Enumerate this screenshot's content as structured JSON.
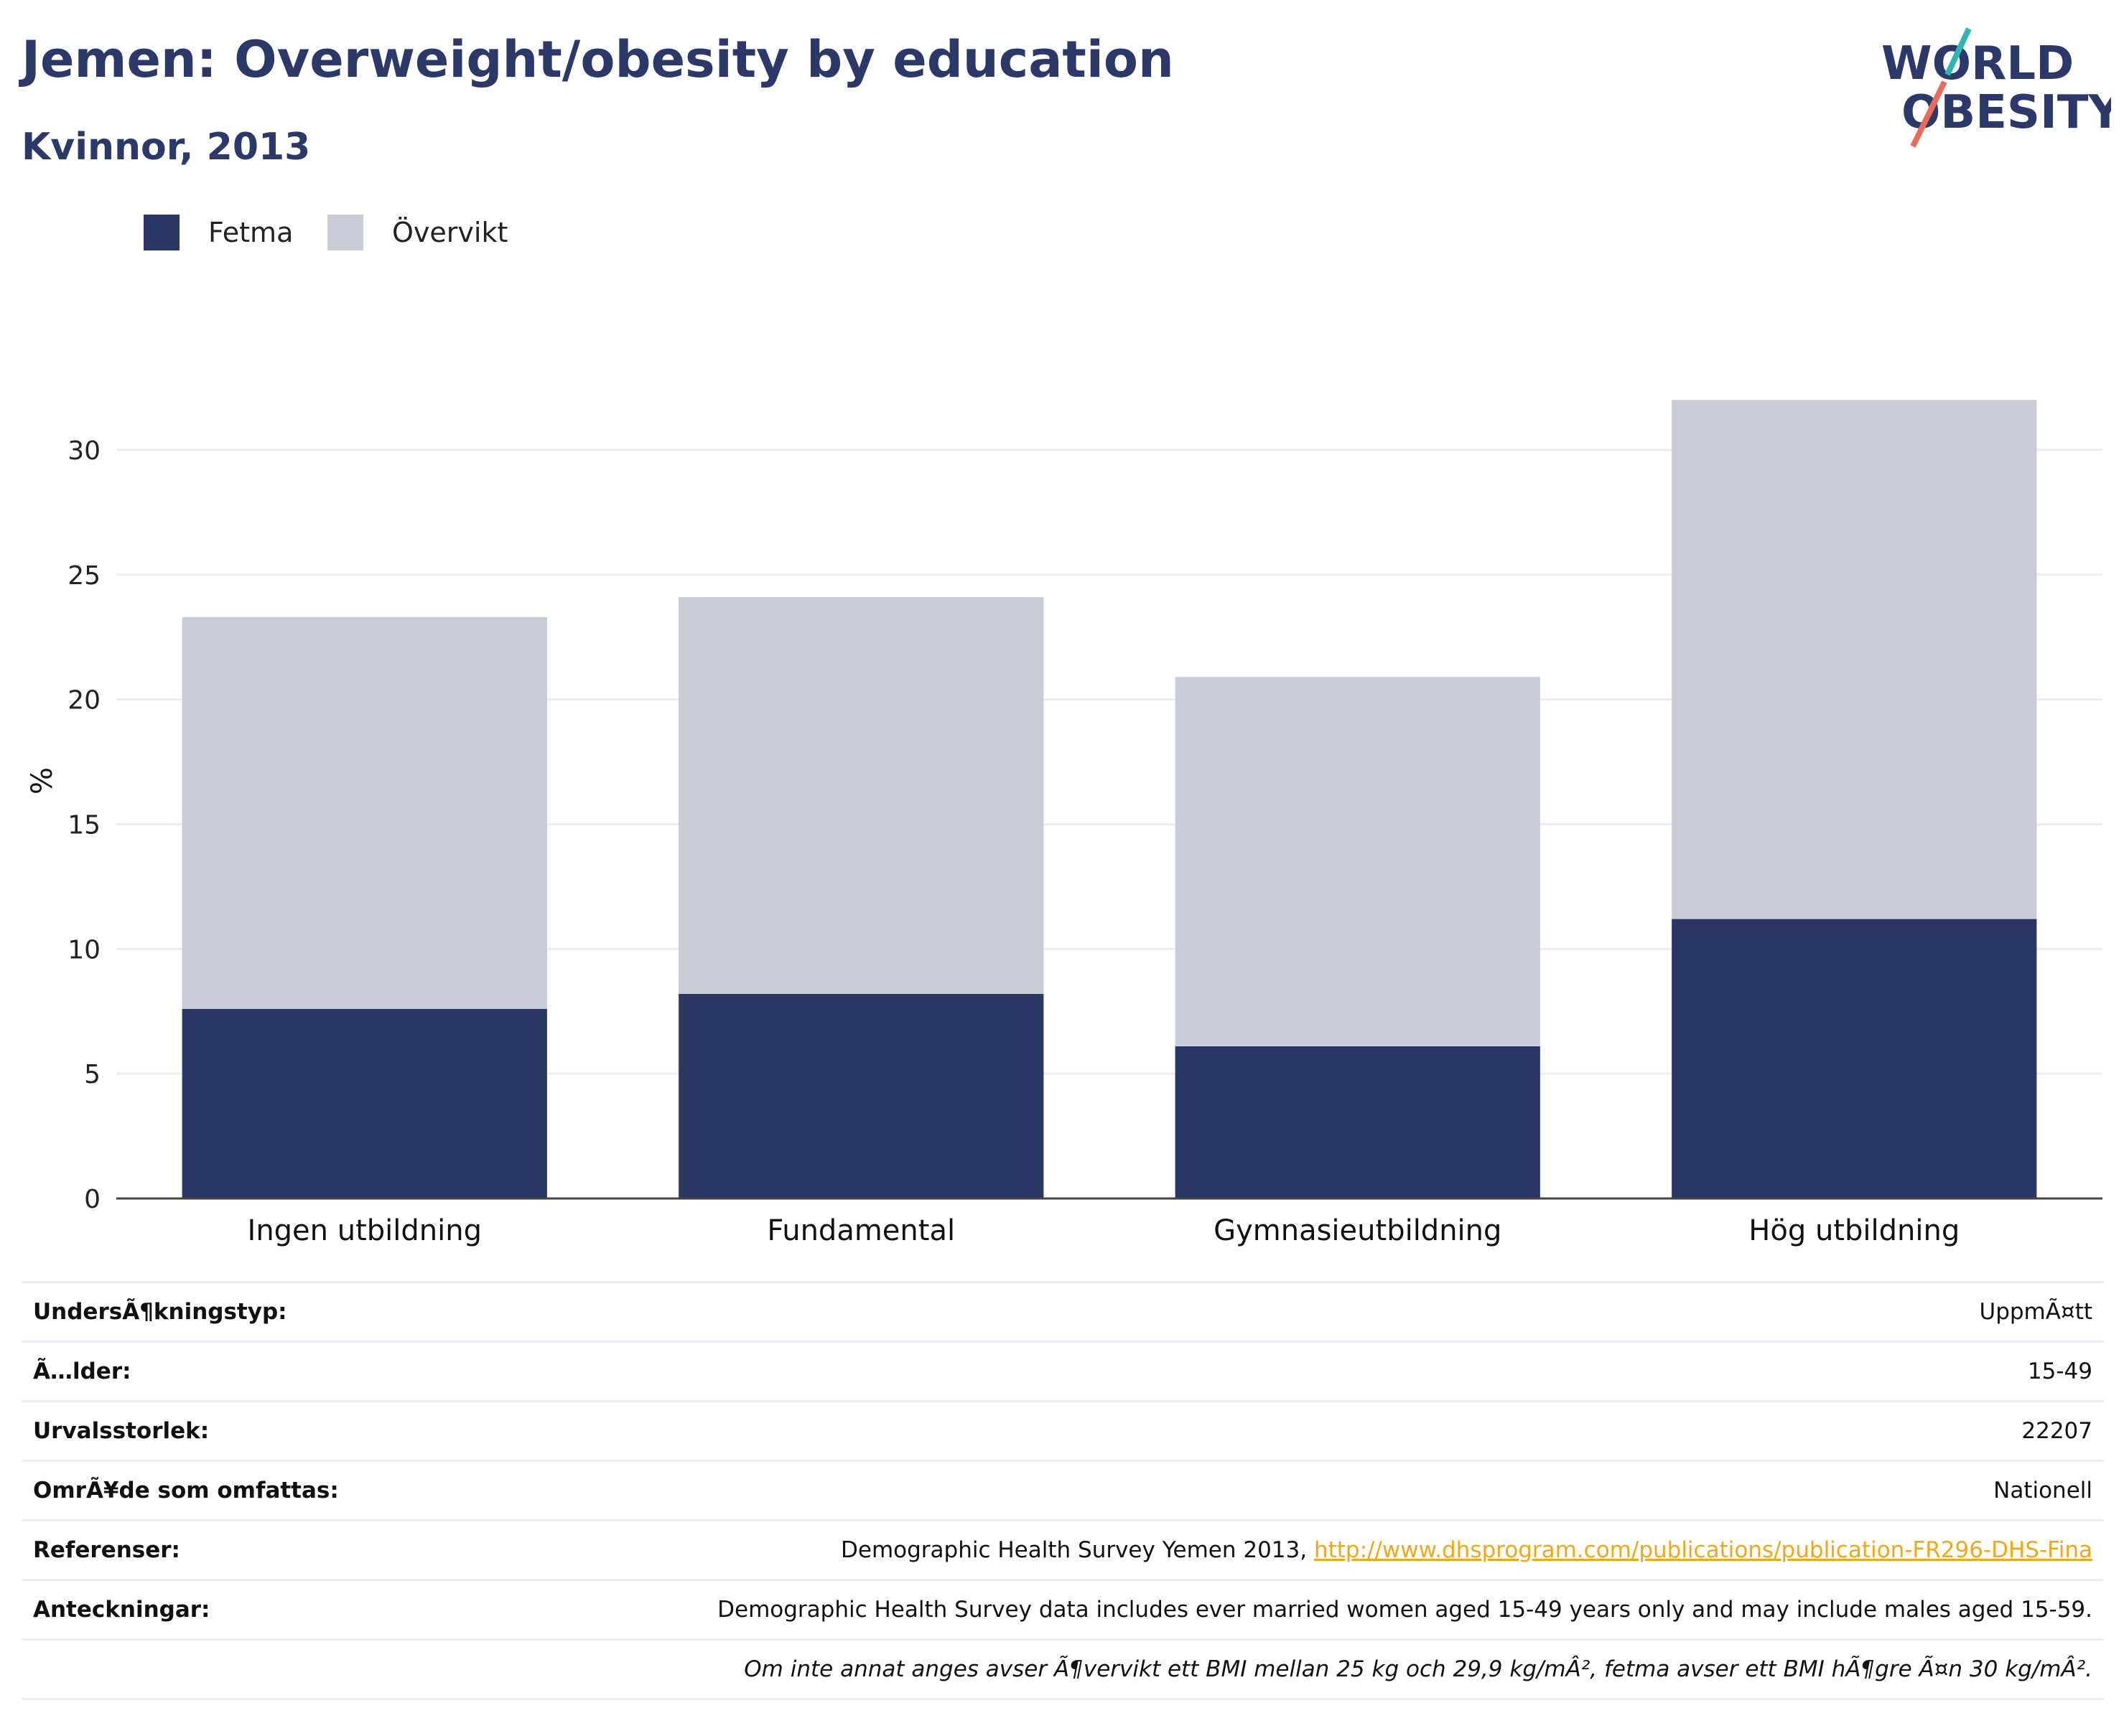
{
  "header": {
    "title": "Jemen: Overweight/obesity by education",
    "subtitle": "Kvinnor, 2013"
  },
  "logo": {
    "line1": "WORLD",
    "line2": "OBESITY",
    "icon": "world-obesity-logo"
  },
  "legend": [
    {
      "label": "Fetma",
      "color": "#2a3764"
    },
    {
      "label": "Övervikt",
      "color": "#c9cbd7"
    }
  ],
  "chart_data": {
    "type": "bar",
    "stacked": true,
    "categories": [
      "Ingen utbildning",
      "Fundamental",
      "Gymnasieutbildning",
      "Hög utbildning"
    ],
    "series": [
      {
        "name": "Fetma",
        "values": [
          7.6,
          8.2,
          6.1,
          11.2
        ],
        "color": "#2a3764"
      },
      {
        "name": "Övervikt",
        "values": [
          15.7,
          15.9,
          14.8,
          20.8
        ],
        "color": "#c9cbd7"
      }
    ],
    "ylabel": "%",
    "xlabel": "",
    "ylim": [
      0,
      32.5
    ],
    "yticks": [
      0,
      5,
      10,
      15,
      20,
      25,
      30
    ],
    "grid": true,
    "legend_position": "top-left"
  },
  "info": [
    {
      "key": "UndersÃ¶kningstyp:",
      "value": "UppmÃ¤tt"
    },
    {
      "key": "Ã…lder:",
      "value": "15-49"
    },
    {
      "key": "Urvalsstorlek:",
      "value": "22207"
    },
    {
      "key": "OmrÃ¥de som omfattas:",
      "value": "Nationell"
    },
    {
      "key": "Referenser:",
      "value": "Demographic Health Survey Yemen 2013, ",
      "link": "http://www.dhsprogram.com/publications/publication-FR296-DHS-Fina"
    },
    {
      "key": "Anteckningar:",
      "value": "Demographic Health Survey data includes ever married women aged 15-49 years only and may include males aged 15-59."
    }
  ],
  "footnote": "Om inte annat anges avser Ã¶vervikt ett BMI mellan 25 kg och 29,9 kg/mÂ², fetma avser ett BMI hÃ¶gre Ã¤n 30 kg/mÂ²."
}
